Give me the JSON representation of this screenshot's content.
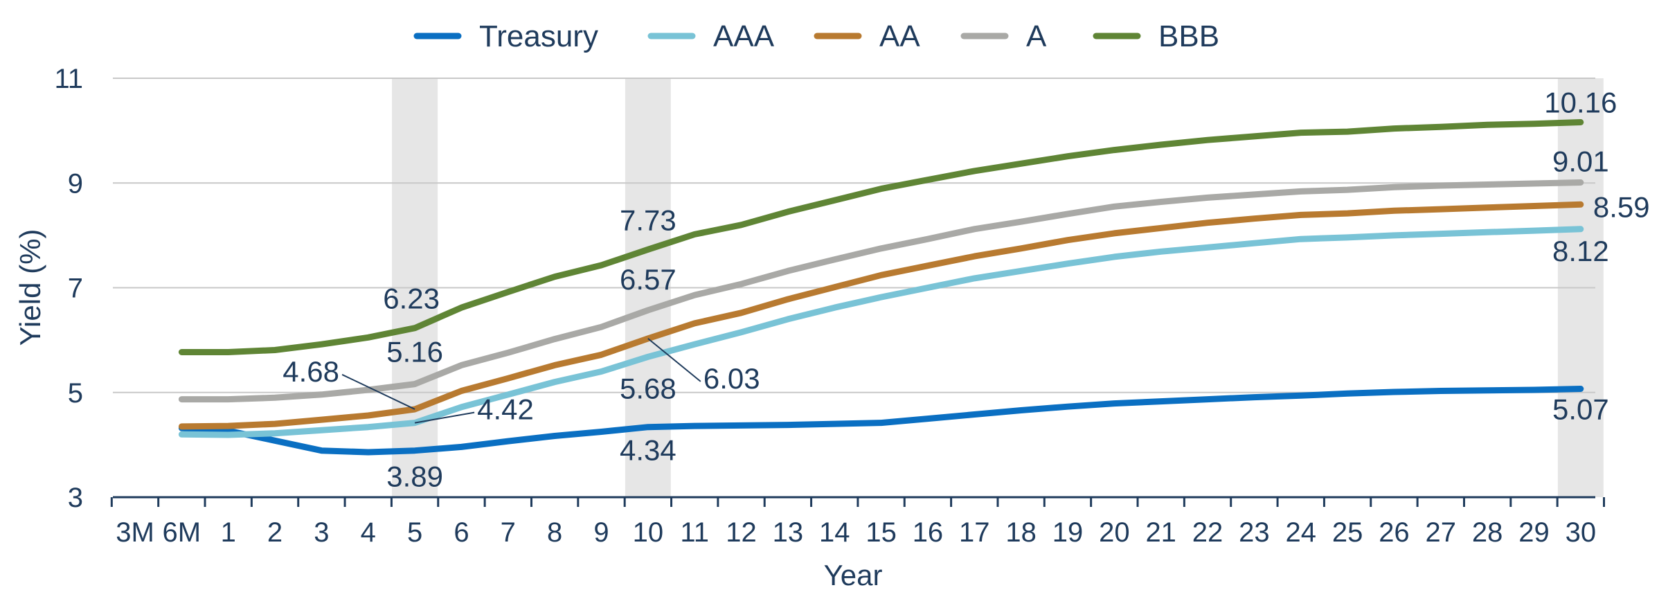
{
  "chart_data": {
    "type": "line",
    "title": "",
    "xlabel": "Year",
    "ylabel": "Yield (%)",
    "ylim": [
      3,
      11
    ],
    "yticks": [
      "3",
      "5",
      "7",
      "9",
      "11"
    ],
    "grid": true,
    "legend_position": "top-center",
    "categories": [
      "3M",
      "6M",
      "1",
      "2",
      "3",
      "4",
      "5",
      "6",
      "7",
      "8",
      "9",
      "10",
      "11",
      "12",
      "13",
      "14",
      "15",
      "16",
      "17",
      "18",
      "19",
      "20",
      "21",
      "22",
      "23",
      "24",
      "25",
      "26",
      "27",
      "28",
      "29",
      "30"
    ],
    "highlight_categories": [
      "5",
      "10",
      "30"
    ],
    "series": [
      {
        "name": "Treasury",
        "color": "#0a6fc2",
        "values": [
          null,
          4.32,
          4.27,
          4.08,
          3.89,
          3.86,
          3.89,
          3.96,
          4.07,
          4.17,
          4.25,
          4.34,
          4.36,
          4.37,
          4.38,
          4.4,
          4.42,
          4.5,
          4.58,
          4.66,
          4.73,
          4.79,
          4.83,
          4.87,
          4.91,
          4.94,
          4.98,
          5.01,
          5.03,
          5.04,
          5.05,
          5.07
        ]
      },
      {
        "name": "AAA",
        "color": "#79c3d6",
        "values": [
          null,
          4.2,
          4.19,
          4.22,
          4.28,
          4.34,
          4.42,
          4.72,
          4.96,
          5.2,
          5.4,
          5.68,
          5.92,
          6.15,
          6.4,
          6.62,
          6.82,
          7.0,
          7.18,
          7.32,
          7.46,
          7.59,
          7.69,
          7.77,
          7.85,
          7.93,
          7.96,
          8.0,
          8.03,
          8.06,
          8.09,
          8.12
        ]
      },
      {
        "name": "AA",
        "color": "#b87a30",
        "values": [
          null,
          4.35,
          4.36,
          4.4,
          4.48,
          4.56,
          4.68,
          5.03,
          5.27,
          5.52,
          5.72,
          6.03,
          6.32,
          6.52,
          6.78,
          7.01,
          7.24,
          7.42,
          7.6,
          7.75,
          7.91,
          8.04,
          8.14,
          8.24,
          8.32,
          8.39,
          8.42,
          8.47,
          8.5,
          8.53,
          8.56,
          8.59
        ]
      },
      {
        "name": "A",
        "color": "#a9a9a6",
        "values": [
          null,
          4.87,
          4.87,
          4.9,
          4.96,
          5.05,
          5.16,
          5.52,
          5.76,
          6.02,
          6.25,
          6.57,
          6.86,
          7.07,
          7.32,
          7.54,
          7.75,
          7.93,
          8.12,
          8.26,
          8.41,
          8.55,
          8.64,
          8.72,
          8.78,
          8.84,
          8.87,
          8.92,
          8.95,
          8.97,
          8.99,
          9.01
        ]
      },
      {
        "name": "BBB",
        "color": "#5f8535",
        "values": [
          null,
          5.77,
          5.77,
          5.81,
          5.92,
          6.05,
          6.23,
          6.62,
          6.92,
          7.21,
          7.43,
          7.73,
          8.02,
          8.2,
          8.45,
          8.67,
          8.89,
          9.06,
          9.23,
          9.37,
          9.51,
          9.63,
          9.73,
          9.82,
          9.89,
          9.96,
          9.98,
          10.04,
          10.07,
          10.11,
          10.13,
          10.16
        ]
      }
    ],
    "annotations": [
      {
        "text": "6.23",
        "series": "BBB",
        "x": "5"
      },
      {
        "text": "5.16",
        "series": "A",
        "x": "5"
      },
      {
        "text": "4.68",
        "series": "AA",
        "x": "5"
      },
      {
        "text": "4.42",
        "series": "AAA",
        "x": "5"
      },
      {
        "text": "3.89",
        "series": "Treasury",
        "x": "5"
      },
      {
        "text": "7.73",
        "series": "BBB",
        "x": "10"
      },
      {
        "text": "6.57",
        "series": "A",
        "x": "10"
      },
      {
        "text": "6.03",
        "series": "AA",
        "x": "10"
      },
      {
        "text": "5.68",
        "series": "AAA",
        "x": "10"
      },
      {
        "text": "4.34",
        "series": "Treasury",
        "x": "10"
      },
      {
        "text": "10.16",
        "series": "BBB",
        "x": "30"
      },
      {
        "text": "9.01",
        "series": "A",
        "x": "30"
      },
      {
        "text": "8.59",
        "series": "AA",
        "x": "30"
      },
      {
        "text": "8.12",
        "series": "AAA",
        "x": "30"
      },
      {
        "text": "5.07",
        "series": "Treasury",
        "x": "30"
      }
    ]
  }
}
